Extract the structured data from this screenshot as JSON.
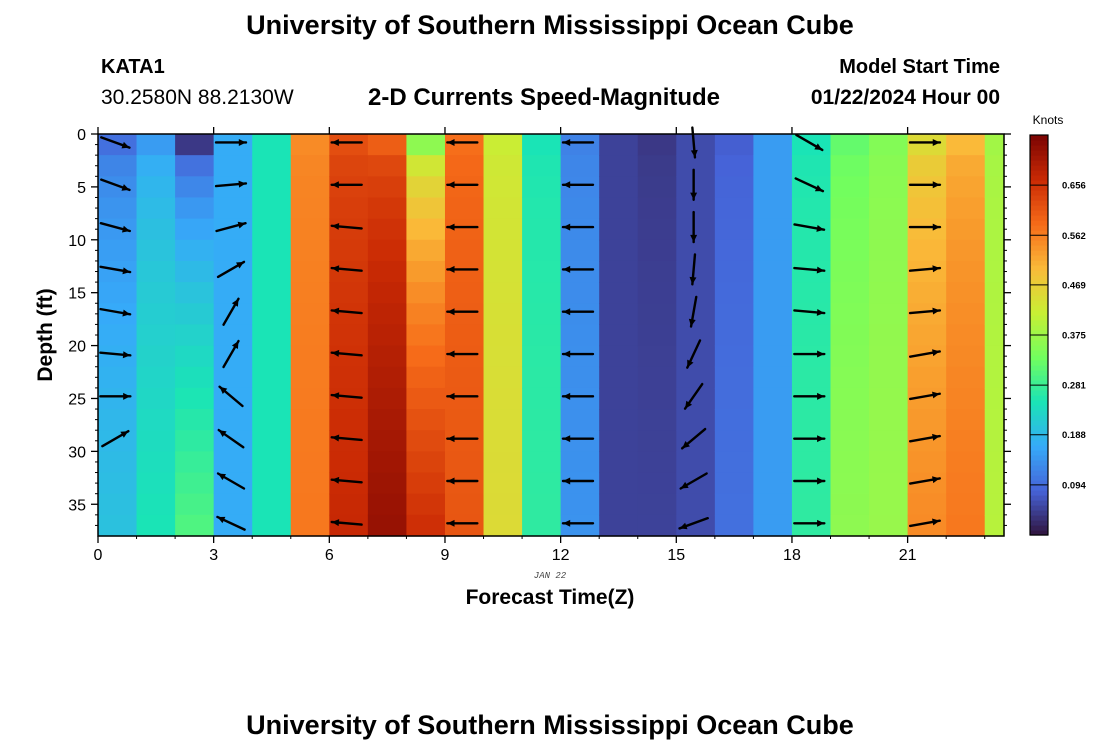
{
  "header": {
    "title": "University of Southern Mississippi Ocean Cube",
    "station_id": "KATA1",
    "coordinates": "30.2580N  88.2130W",
    "subtitle": "2-D Currents Speed-Magnitude",
    "model_start_label": "Model Start Time",
    "model_start_value": "01/22/2024 Hour 00"
  },
  "footer": {
    "title": "University of Southern Mississippi Ocean Cube"
  },
  "chart_data": {
    "type": "heatmap",
    "title": "2-D Currents Speed-Magnitude",
    "xlabel": "Forecast Time(Z)",
    "ylabel": "Depth (ft)",
    "date_label": "JAN 22",
    "xlim": [
      0,
      23.5
    ],
    "ylim": [
      0,
      38
    ],
    "y_inverted": true,
    "x_ticks": [
      0,
      3,
      6,
      9,
      12,
      15,
      18,
      21
    ],
    "y_ticks": [
      0,
      5,
      10,
      15,
      20,
      25,
      30,
      35
    ],
    "colorbar": {
      "unit": "Knots",
      "ticks": [
        0.094,
        0.188,
        0.281,
        0.375,
        0.469,
        0.562,
        0.656
      ],
      "min": 0.0,
      "max": 0.75,
      "colors": [
        "#30123b",
        "#4662d7",
        "#36aaf9",
        "#1ae4b6",
        "#72fe5e",
        "#c8ef34",
        "#faba39",
        "#f66b19",
        "#ca2a04",
        "#7a0403"
      ]
    },
    "surface_speed_by_hour": [
      0.1,
      0.15,
      0.04,
      0.17,
      0.25,
      0.55,
      0.62,
      0.6,
      0.36,
      0.58,
      0.42,
      0.25,
      0.12,
      0.05,
      0.04,
      0.06,
      0.08,
      0.15,
      0.25,
      0.32,
      0.35,
      0.45,
      0.5,
      0.38
    ],
    "bottom_speed_by_hour": [
      0.2,
      0.25,
      0.3,
      0.17,
      0.25,
      0.57,
      0.67,
      0.72,
      0.66,
      0.61,
      0.45,
      0.27,
      0.14,
      0.05,
      0.05,
      0.06,
      0.1,
      0.15,
      0.27,
      0.36,
      0.37,
      0.55,
      0.57,
      0.4
    ],
    "vector_hours": [
      0,
      3,
      6,
      9,
      12,
      15,
      18,
      21
    ],
    "vector_depths": [
      0,
      4,
      8,
      12,
      16,
      20,
      24,
      28,
      32,
      36
    ],
    "vector_directions_deg": [
      [
        -20,
        -20,
        -15,
        -10,
        -10,
        -5,
        0,
        30,
        null,
        null
      ],
      [
        0,
        5,
        15,
        30,
        60,
        60,
        140,
        145,
        150,
        155
      ],
      [
        180,
        180,
        175,
        175,
        175,
        175,
        175,
        175,
        175,
        175
      ],
      [
        180,
        180,
        180,
        180,
        180,
        180,
        180,
        180,
        180,
        180
      ],
      [
        180,
        180,
        180,
        180,
        180,
        180,
        180,
        180,
        180,
        180
      ],
      [
        -85,
        -90,
        -90,
        -95,
        -100,
        -115,
        -125,
        -140,
        -150,
        -160
      ],
      [
        -30,
        -25,
        -10,
        -5,
        -5,
        0,
        0,
        0,
        0,
        0
      ],
      [
        0,
        0,
        0,
        5,
        5,
        10,
        10,
        10,
        10,
        10
      ]
    ]
  }
}
